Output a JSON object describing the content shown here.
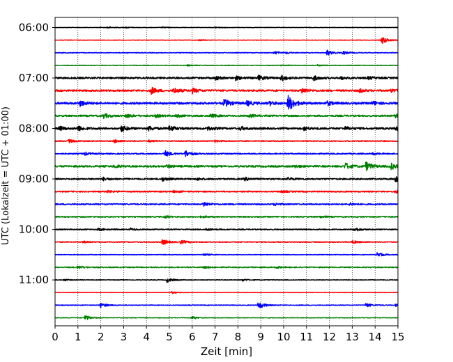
{
  "chart_data": {
    "type": "line",
    "title": "",
    "xlabel": "Zeit  [min]",
    "ylabel": "UTC (Lokalzeit = UTC + 01:00)",
    "xlim": [
      0,
      15
    ],
    "x_ticks": [
      "0",
      "1",
      "2",
      "3",
      "4",
      "5",
      "6",
      "7",
      "8",
      "9",
      "10",
      "11",
      "12",
      "13",
      "14",
      "15"
    ],
    "y_ticks": [
      "06:00",
      "07:00",
      "08:00",
      "09:00",
      "10:00",
      "11:00"
    ],
    "grid": "vertical dotted at each minute",
    "trace_colors": [
      "#000000",
      "#ff0000",
      "#0000ff",
      "#008000"
    ],
    "traces": [
      {
        "start": "06:00",
        "events": [
          [
            2.3,
            0.3
          ],
          [
            3.1,
            0.2
          ],
          [
            4.7,
            0.2
          ],
          [
            7.0,
            0.2
          ]
        ],
        "noise": 0.08
      },
      {
        "start": "06:15",
        "events": [
          [
            14.3,
            1.3
          ],
          [
            6.3,
            0.2
          ]
        ],
        "noise": 0.09
      },
      {
        "start": "06:30",
        "events": [
          [
            9.6,
            0.5
          ],
          [
            11.9,
            0.9
          ],
          [
            12.6,
            0.5
          ],
          [
            10.1,
            0.3
          ]
        ],
        "noise": 0.12
      },
      {
        "start": "06:45",
        "events": [
          [
            5.8,
            0.2
          ],
          [
            9.9,
            0.2
          ],
          [
            11.5,
            0.3
          ]
        ],
        "noise": 0.1
      },
      {
        "start": "07:00",
        "events": [
          [
            7.0,
            0.6
          ],
          [
            7.9,
            0.6
          ],
          [
            8.9,
            0.8
          ],
          [
            9.9,
            0.9
          ],
          [
            11.3,
            0.8
          ],
          [
            12.5,
            0.4
          ],
          [
            13.7,
            0.4
          ]
        ],
        "noise": 0.3
      },
      {
        "start": "07:15",
        "events": [
          [
            4.2,
            1.1
          ],
          [
            5.2,
            0.9
          ],
          [
            6.0,
            0.8
          ],
          [
            10.8,
            0.9
          ],
          [
            13.3,
            0.6
          ],
          [
            14.7,
            0.5
          ]
        ],
        "noise": 0.3
      },
      {
        "start": "07:30",
        "events": [
          [
            1.1,
            0.9
          ],
          [
            7.4,
            1.3
          ],
          [
            8.4,
            0.8
          ],
          [
            9.4,
            0.6
          ],
          [
            10.2,
            2.7
          ],
          [
            11.9,
            0.7
          ],
          [
            13.9,
            0.6
          ]
        ],
        "noise": 0.35
      },
      {
        "start": "07:45",
        "events": [
          [
            2.1,
            0.8
          ],
          [
            3.1,
            0.6
          ],
          [
            4.4,
            0.4
          ],
          [
            5.3,
            0.4
          ],
          [
            6.8,
            0.5
          ],
          [
            8.5,
            0.5
          ],
          [
            14.9,
            0.5
          ]
        ],
        "noise": 0.28
      },
      {
        "start": "08:00",
        "events": [
          [
            0.2,
            0.6
          ],
          [
            1.0,
            0.8
          ],
          [
            2.9,
            1.0
          ],
          [
            4.1,
            0.7
          ],
          [
            5.0,
            0.9
          ],
          [
            6.7,
            0.6
          ],
          [
            8.1,
            0.6
          ],
          [
            10.9,
            0.6
          ],
          [
            12.7,
            0.5
          ],
          [
            14.9,
            0.6
          ]
        ],
        "noise": 0.32
      },
      {
        "start": "08:15",
        "events": [
          [
            0.6,
            0.5
          ],
          [
            2.6,
            0.5
          ],
          [
            4.1,
            0.3
          ],
          [
            7.0,
            0.3
          ]
        ],
        "noise": 0.18
      },
      {
        "start": "08:30",
        "events": [
          [
            1.3,
            0.5
          ],
          [
            4.8,
            1.0
          ],
          [
            5.7,
            1.1
          ],
          [
            13.9,
            0.3
          ]
        ],
        "noise": 0.2
      },
      {
        "start": "08:45",
        "events": [
          [
            2.6,
            0.5
          ],
          [
            4.9,
            0.5
          ],
          [
            10.5,
            0.4
          ],
          [
            12.7,
            1.1
          ],
          [
            13.6,
            1.5
          ],
          [
            14.7,
            1.0
          ]
        ],
        "noise": 0.3
      },
      {
        "start": "09:00",
        "events": [
          [
            2.1,
            0.5
          ],
          [
            4.7,
            0.6
          ],
          [
            6.2,
            0.4
          ],
          [
            8.3,
            0.5
          ],
          [
            10.2,
            0.4
          ],
          [
            14.9,
            1.0
          ]
        ],
        "noise": 0.25
      },
      {
        "start": "09:15",
        "events": [
          [
            2.3,
            0.4
          ],
          [
            5.2,
            0.3
          ],
          [
            9.9,
            0.3
          ],
          [
            14.9,
            0.4
          ]
        ],
        "noise": 0.22
      },
      {
        "start": "09:30",
        "events": [
          [
            6.5,
            0.8
          ],
          [
            9.6,
            0.4
          ],
          [
            12.9,
            0.4
          ]
        ],
        "noise": 0.22
      },
      {
        "start": "09:45",
        "events": [
          [
            4.8,
            0.4
          ],
          [
            6.4,
            0.3
          ],
          [
            11.6,
            0.3
          ]
        ],
        "noise": 0.2
      },
      {
        "start": "10:00",
        "events": [
          [
            1.9,
            0.4
          ],
          [
            3.3,
            0.4
          ],
          [
            6.6,
            0.4
          ],
          [
            13.1,
            0.7
          ]
        ],
        "noise": 0.18
      },
      {
        "start": "10:15",
        "events": [
          [
            4.7,
            0.9
          ],
          [
            5.5,
            0.6
          ],
          [
            13.0,
            0.5
          ],
          [
            1.2,
            0.3
          ]
        ],
        "noise": 0.16
      },
      {
        "start": "10:30",
        "events": [
          [
            6.5,
            0.4
          ],
          [
            14.1,
            0.8
          ]
        ],
        "noise": 0.1
      },
      {
        "start": "10:45",
        "events": [
          [
            1.0,
            0.5
          ],
          [
            6.5,
            0.3
          ],
          [
            9.7,
            0.3
          ]
        ],
        "noise": 0.18
      },
      {
        "start": "11:00",
        "events": [
          [
            0.4,
            0.3
          ],
          [
            4.9,
            0.8
          ],
          [
            8.2,
            0.4
          ]
        ],
        "noise": 0.1
      },
      {
        "start": "11:15",
        "events": [
          [
            5.1,
            0.4
          ]
        ],
        "noise": 0.06
      },
      {
        "start": "11:30",
        "events": [
          [
            2.0,
            0.8
          ],
          [
            8.9,
            1.3
          ],
          [
            13.6,
            0.7
          ],
          [
            14.9,
            0.4
          ]
        ],
        "noise": 0.12
      },
      {
        "start": "11:45",
        "events": [
          [
            1.3,
            1.0
          ],
          [
            6.0,
            0.5
          ]
        ],
        "noise": 0.1
      }
    ]
  }
}
